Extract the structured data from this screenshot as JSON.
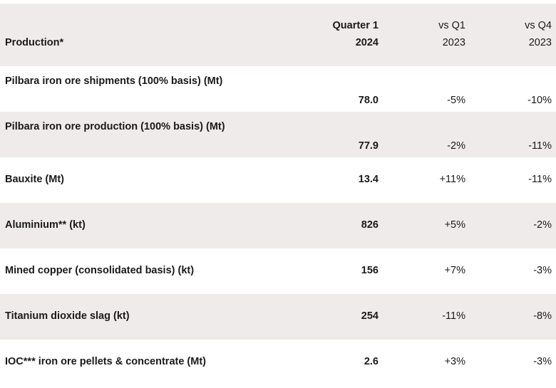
{
  "header": {
    "label": "Production*",
    "col1_line1": "Quarter 1",
    "col1_line2": "2024",
    "col2_line1": "vs Q1",
    "col2_line2": "2023",
    "col3_line1": "vs Q4",
    "col3_line2": "2023"
  },
  "rows": [
    {
      "label": "Pilbara iron ore shipments (100% basis) (Mt)",
      "q1": "78.0",
      "vs_q1": "-5%",
      "vs_q4": "-10%"
    },
    {
      "label": "Pilbara iron ore production (100% basis) (Mt)",
      "q1": "77.9",
      "vs_q1": "-2%",
      "vs_q4": "-11%"
    },
    {
      "label": "Bauxite (Mt)",
      "q1": "13.4",
      "vs_q1": "+11%",
      "vs_q4": "-11%"
    },
    {
      "label": "Aluminium** (kt)",
      "q1": "826",
      "vs_q1": "+5%",
      "vs_q4": "-2%"
    },
    {
      "label": "Mined copper (consolidated basis) (kt)",
      "q1": "156",
      "vs_q1": "+7%",
      "vs_q4": "-3%"
    },
    {
      "label": "Titanium dioxide slag (kt)",
      "q1": "254",
      "vs_q1": "-11%",
      "vs_q4": "-8%"
    },
    {
      "label": "IOC*** iron ore pellets & concentrate (Mt)",
      "q1": "2.6",
      "vs_q1": "+3%",
      "vs_q4": "-3%"
    }
  ]
}
